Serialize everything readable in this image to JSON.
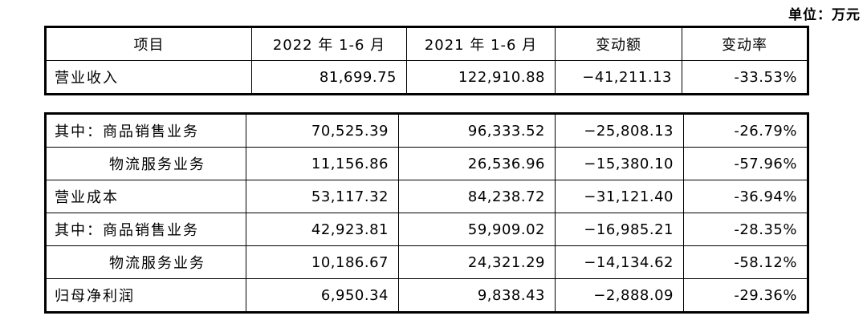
{
  "unit": "单位：万元",
  "table1": {
    "header": [
      "项目",
      "2022 年 1-6 月",
      "2021 年 1-6 月",
      "变动额",
      "变动率"
    ],
    "rows": [
      [
        "营业收入",
        "81,699.75",
        "122,910.88",
        "−41,211.13",
        "-33.53%"
      ]
    ]
  },
  "table2": {
    "rows": [
      [
        "其中：商品销售业务",
        "70,525.39",
        "96,333.52",
        "−25,808.13",
        "-26.79%"
      ],
      [
        "物流服务业务",
        "11,156.86",
        "26,536.96",
        "−15,380.10",
        "-57.96%"
      ],
      [
        "营业成本",
        "53,117.32",
        "84,238.72",
        "−31,121.40",
        "-36.94%"
      ],
      [
        "其中：商品销售业务",
        "42,923.81",
        "59,909.02",
        "−16,985.21",
        "-28.35%"
      ],
      [
        "物流服务业务",
        "10,186.67",
        "24,321.29",
        "−14,134.62",
        "-58.12%"
      ],
      [
        "归母净利润",
        "6,950.34",
        "9,838.43",
        "−2,888.09",
        "-29.36%"
      ]
    ]
  }
}
